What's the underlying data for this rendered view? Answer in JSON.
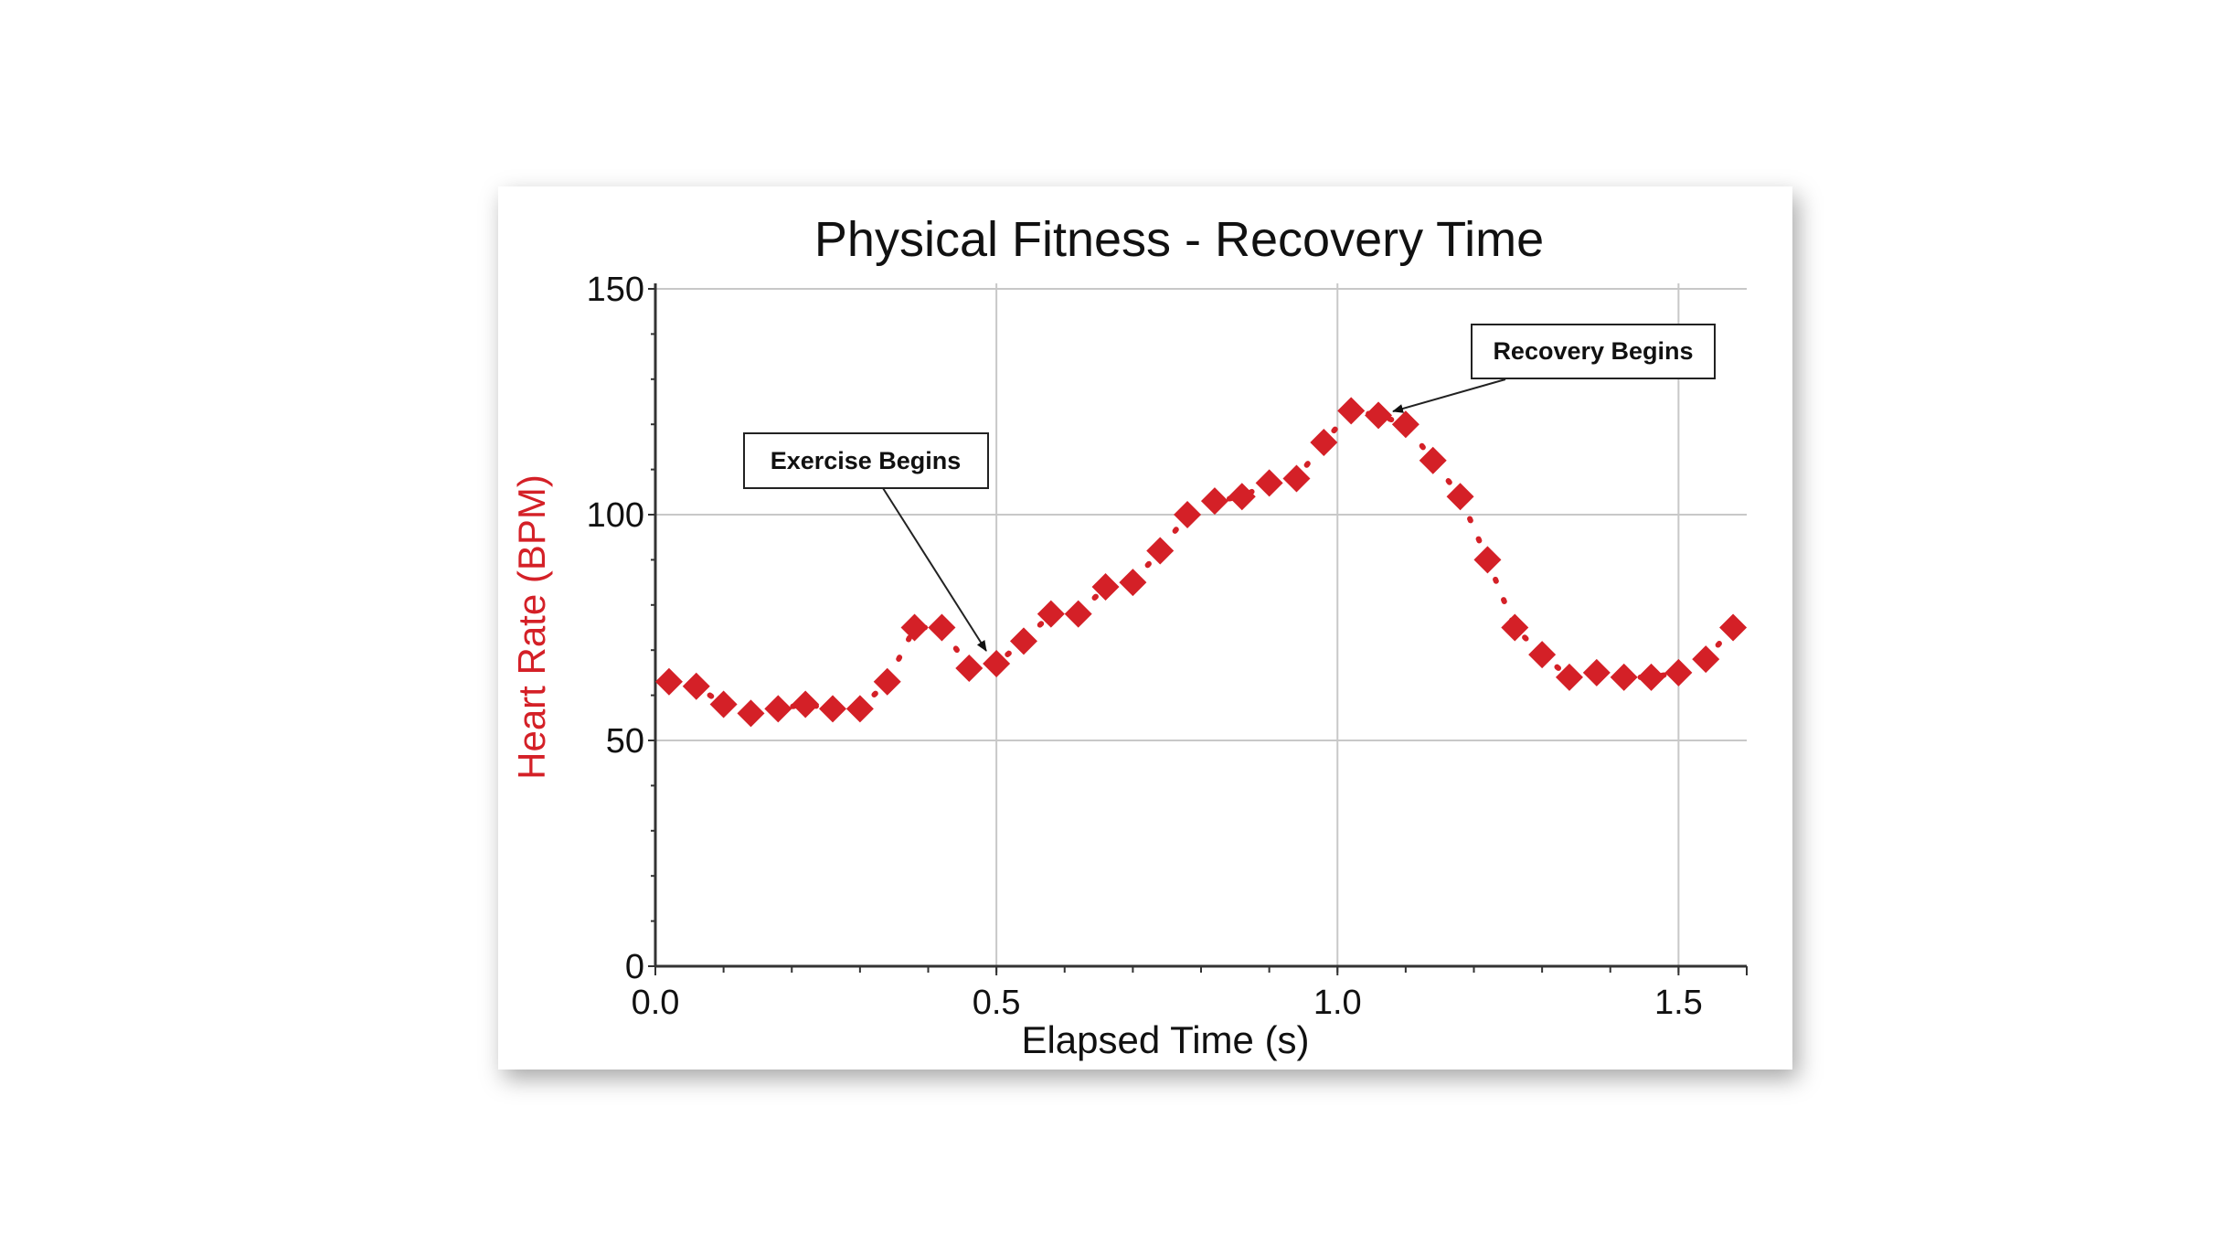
{
  "chart_data": {
    "type": "scatter",
    "title": "Physical Fitness - Recovery Time",
    "xlabel": "Elapsed Time (s)",
    "ylabel": "Heart Rate (BPM)",
    "xlim": [
      0,
      1.6
    ],
    "ylim": [
      0,
      150
    ],
    "xticks": [
      "0.0",
      "0.5",
      "1.0",
      "1.5"
    ],
    "yticks": [
      "0",
      "50",
      "100",
      "150"
    ],
    "grid": true,
    "marker": "diamond",
    "connector": "dotted",
    "color": "#d42027",
    "ylabel_color": "#d42027",
    "x": [
      0.02,
      0.06,
      0.1,
      0.14,
      0.18,
      0.22,
      0.26,
      0.3,
      0.34,
      0.38,
      0.42,
      0.46,
      0.5,
      0.54,
      0.58,
      0.62,
      0.66,
      0.7,
      0.74,
      0.78,
      0.82,
      0.86,
      0.9,
      0.94,
      0.98,
      1.02,
      1.06,
      1.1,
      1.14,
      1.18,
      1.22,
      1.26,
      1.3,
      1.34,
      1.38,
      1.42,
      1.46,
      1.5,
      1.54,
      1.58
    ],
    "y": [
      63,
      62,
      58,
      56,
      57,
      58,
      57,
      57,
      63,
      75,
      75,
      66,
      67,
      72,
      78,
      78,
      84,
      85,
      92,
      100,
      103,
      104,
      107,
      108,
      116,
      123,
      122,
      120,
      112,
      104,
      90,
      75,
      69,
      64,
      65,
      64,
      64,
      65,
      68,
      75
    ],
    "annotations": [
      {
        "text": "Exercise Begins",
        "x": 0.49,
        "y": 68
      },
      {
        "text": "Recovery Begins",
        "x": 1.08,
        "y": 123
      }
    ]
  }
}
